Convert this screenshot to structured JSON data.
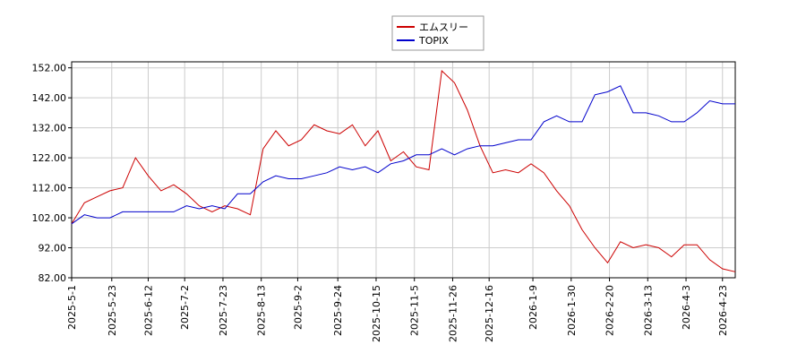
{
  "chart_data": {
    "type": "line",
    "x": [
      "2025-5-1",
      "2025-5-8",
      "2025-5-15",
      "2025-5-22",
      "2025-5-29",
      "2025-6-5",
      "2025-6-12",
      "2025-6-19",
      "2025-6-26",
      "2025-7-3",
      "2025-7-10",
      "2025-7-17",
      "2025-7-24",
      "2025-7-31",
      "2025-8-7",
      "2025-8-14",
      "2025-8-21",
      "2025-8-28",
      "2025-9-4",
      "2025-9-11",
      "2025-9-18",
      "2025-9-25",
      "2025-10-2",
      "2025-10-9",
      "2025-10-16",
      "2025-10-23",
      "2025-10-30",
      "2025-11-6",
      "2025-11-13",
      "2025-11-20",
      "2025-11-27",
      "2025-12-4",
      "2025-12-11",
      "2025-12-18",
      "2025-12-25",
      "2026-1-1",
      "2026-1-8",
      "2026-1-15",
      "2026-1-22",
      "2026-1-29",
      "2026-2-5",
      "2026-2-12",
      "2026-2-19",
      "2026-2-26",
      "2026-3-5",
      "2026-3-12",
      "2026-3-19",
      "2026-3-26",
      "2026-4-2",
      "2026-4-9",
      "2026-4-16",
      "2026-4-23",
      "2026-4-30"
    ],
    "series": [
      {
        "name": "エムスリー",
        "color": "#cc0000",
        "values": [
          100,
          107,
          109,
          111,
          112,
          122,
          116,
          111,
          113,
          110,
          106,
          104,
          106,
          105,
          103,
          125,
          131,
          126,
          128,
          133,
          131,
          130,
          133,
          126,
          131,
          121,
          124,
          119,
          118,
          151,
          147,
          138,
          126,
          117,
          118,
          117,
          120,
          117,
          111,
          106,
          98,
          92,
          87,
          94,
          92,
          93,
          92,
          89,
          93,
          93,
          88,
          85,
          84
        ]
      },
      {
        "name": "TOPIX",
        "color": "#0000cc",
        "values": [
          100,
          103,
          102,
          102,
          104,
          104,
          104,
          104,
          104,
          106,
          105,
          106,
          105,
          110,
          110,
          114,
          116,
          115,
          115,
          116,
          117,
          119,
          118,
          119,
          117,
          120,
          121,
          123,
          123,
          125,
          123,
          125,
          126,
          126,
          127,
          128,
          128,
          134,
          136,
          134,
          134,
          143,
          144,
          146,
          137,
          137,
          136,
          134,
          134,
          137,
          141,
          140,
          140
        ]
      }
    ],
    "xlim": [
      "2025-5-1",
      "2026-4-30"
    ],
    "xticks": [
      "2025-5-1",
      "2025-5-23",
      "2025-6-12",
      "2025-7-2",
      "2025-7-23",
      "2025-8-13",
      "2025-9-2",
      "2025-9-24",
      "2025-10-15",
      "2025-11-5",
      "2025-11-26",
      "2025-12-16",
      "2026-1-9",
      "2026-1-30",
      "2026-2-20",
      "2026-3-13",
      "2026-4-3",
      "2026-4-23"
    ],
    "ylim": [
      82,
      154
    ],
    "yticks": [
      {
        "value": 82,
        "label": "82.00"
      },
      {
        "value": 92,
        "label": "92.00"
      },
      {
        "value": 102,
        "label": "102.00"
      },
      {
        "value": 112,
        "label": "112.00"
      },
      {
        "value": 122,
        "label": "122.00"
      },
      {
        "value": 132,
        "label": "132.00"
      },
      {
        "value": 142,
        "label": "142.00"
      },
      {
        "value": 152,
        "label": "152.00"
      }
    ],
    "grid": true
  }
}
